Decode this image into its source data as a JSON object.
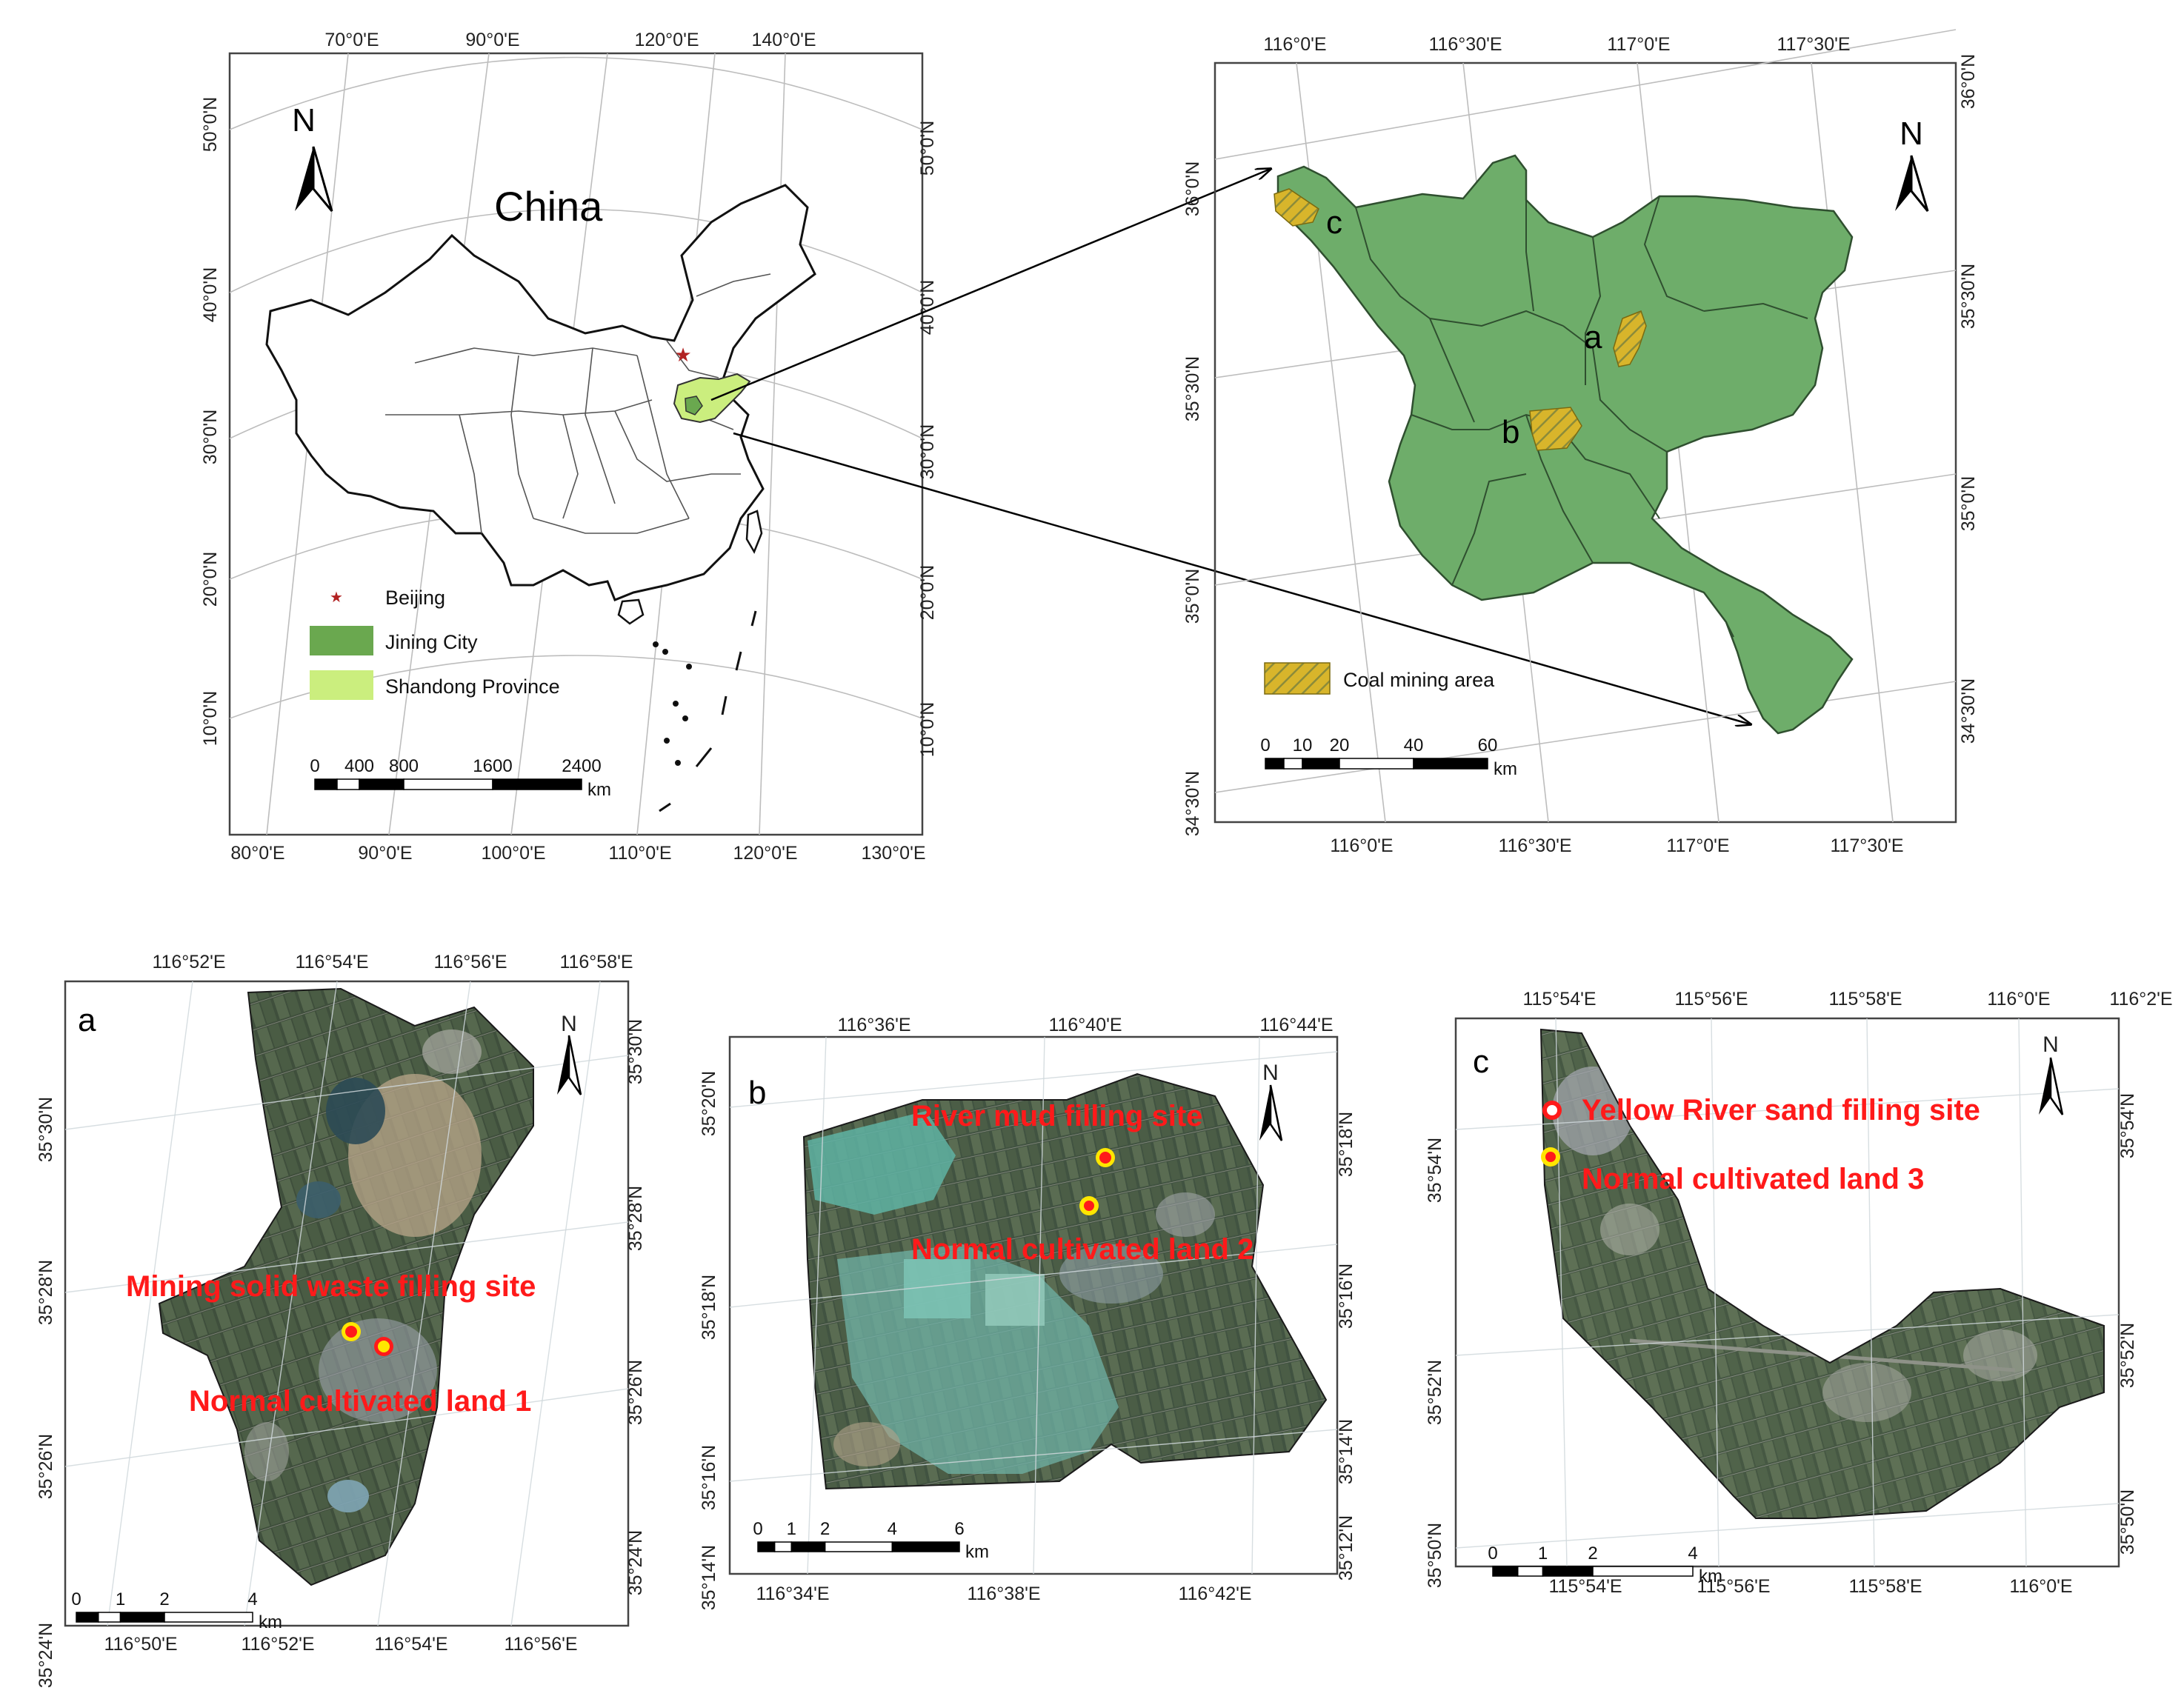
{
  "colors": {
    "jining_city": "#6aa84f",
    "shandong_province": "#cbee7e",
    "county_fill": "#6ead6a",
    "coal_hatch": "#d8b52b",
    "site_marker_red": "#ff1a1a",
    "site_marker_yellow": "#ffe600",
    "beijing_star": "#b22222"
  },
  "panel_china": {
    "title": "China",
    "north": "N",
    "top_ticks": [
      "70°0'E",
      "90°0'E",
      "120°0'E",
      "140°0'E"
    ],
    "bottom_ticks": [
      "80°0'E",
      "90°0'E",
      "100°0'E",
      "110°0'E",
      "120°0'E",
      "130°0'E"
    ],
    "left_ticks": [
      "50°0'N",
      "40°0'N",
      "30°0'N",
      "20°0'N",
      "10°0'N"
    ],
    "right_ticks": [
      "50°0'N",
      "40°0'N",
      "30°0'N",
      "20°0'N",
      "10°0'N"
    ],
    "legend": {
      "beijing": "Beijing",
      "jining": "Jining City",
      "shandong": "Shandong Province"
    },
    "scale": {
      "labels": [
        "0",
        "400",
        "800",
        "1600",
        "2400"
      ],
      "unit": "km"
    }
  },
  "panel_jining": {
    "north": "N",
    "top_ticks": [
      "116°0'E",
      "116°30'E",
      "117°0'E",
      "117°30'E"
    ],
    "bottom_ticks": [
      "116°0'E",
      "116°30'E",
      "117°0'E",
      "117°30'E"
    ],
    "left_ticks": [
      "36°0'N",
      "35°30'N",
      "35°0'N",
      "34°30'N"
    ],
    "right_ticks": [
      "36°0'N",
      "35°30'N",
      "35°0'N",
      "34°30'N"
    ],
    "area_labels": [
      "a",
      "b",
      "c"
    ],
    "legend": {
      "coal": "Coal mining area"
    },
    "scale": {
      "labels": [
        "0",
        "10",
        "20",
        "40",
        "60"
      ],
      "unit": "km"
    }
  },
  "panel_a": {
    "label": "a",
    "north": "N",
    "top_ticks": [
      "116°52'E",
      "116°54'E",
      "116°56'E",
      "116°58'E"
    ],
    "bottom_ticks": [
      "116°50'E",
      "116°52'E",
      "116°54'E",
      "116°56'E"
    ],
    "left_ticks": [
      "35°30'N",
      "35°28'N",
      "35°26'N",
      "35°24'N"
    ],
    "right_ticks": [
      "35°30'N",
      "35°28'N",
      "35°26'N",
      "35°24'N"
    ],
    "sites": [
      "Mining  solid waste filling site",
      "Normal cultivated land 1"
    ],
    "scale": {
      "labels": [
        "0",
        "1",
        "2",
        "4"
      ],
      "unit": "km"
    }
  },
  "panel_b": {
    "label": "b",
    "north": "N",
    "top_ticks": [
      "116°36'E",
      "116°40'E",
      "116°44'E"
    ],
    "bottom_ticks": [
      "116°34'E",
      "116°38'E",
      "116°42'E"
    ],
    "left_ticks": [
      "35°20'N",
      "35°18'N",
      "35°16'N",
      "35°14'N"
    ],
    "right_ticks": [
      "35°18'N",
      "35°16'N",
      "35°14'N",
      "35°12'N"
    ],
    "sites": [
      "River mud filling site",
      "Normal cultivated land 2"
    ],
    "scale": {
      "labels": [
        "0",
        "1",
        "2",
        "4",
        "6"
      ],
      "unit": "km"
    }
  },
  "panel_c": {
    "label": "c",
    "north": "N",
    "top_ticks": [
      "115°54'E",
      "115°56'E",
      "115°58'E",
      "116°0'E",
      "116°2'E"
    ],
    "bottom_ticks": [
      "115°54'E",
      "115°56'E",
      "115°58'E",
      "116°0'E"
    ],
    "left_ticks": [
      "35°54'N",
      "35°52'N",
      "35°50'N"
    ],
    "right_ticks": [
      "35°54'N",
      "35°52'N",
      "35°50'N"
    ],
    "sites": [
      "Yellow River sand filling site",
      "Normal cultivated land  3"
    ],
    "scale": {
      "labels": [
        "0",
        "1",
        "2",
        "4"
      ],
      "unit": "km"
    }
  }
}
